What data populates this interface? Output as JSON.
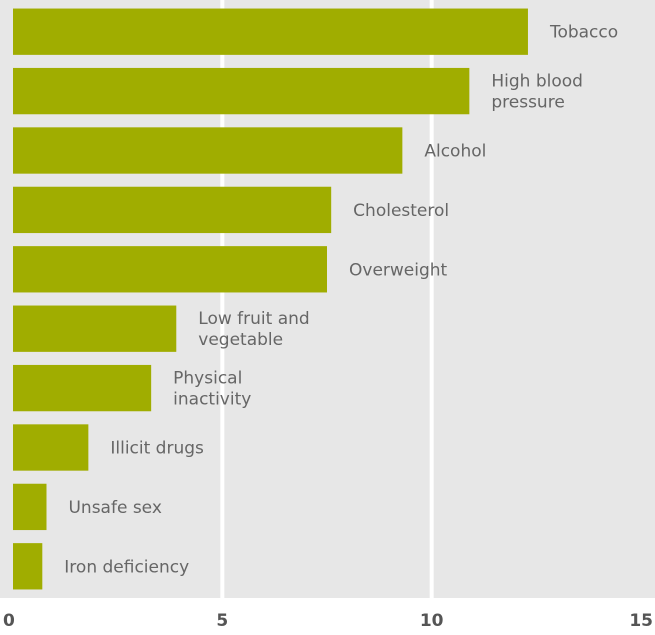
{
  "chart_data": {
    "type": "bar",
    "orientation": "horizontal",
    "categories": [
      "Tobacco",
      "High blood pressure",
      "Alcohol",
      "Cholesterol",
      "Overweight",
      "Low fruit and vegetable",
      "Physical inactivity",
      "Illicit drugs",
      "Unsafe sex",
      "Iron deficiency"
    ],
    "label_lines": [
      [
        "Tobacco"
      ],
      [
        "High blood",
        "pressure"
      ],
      [
        "Alcohol"
      ],
      [
        "Cholesterol"
      ],
      [
        "Overweight"
      ],
      [
        "Low fruit and",
        "vegetable"
      ],
      [
        "Physical",
        "inactivity"
      ],
      [
        "Illicit drugs"
      ],
      [
        "Unsafe sex"
      ],
      [
        "Iron deficiency"
      ]
    ],
    "values": [
      12.3,
      10.9,
      9.3,
      7.6,
      7.5,
      3.9,
      3.3,
      1.8,
      0.8,
      0.7
    ],
    "xlim": [
      0,
      15
    ],
    "xticks": [
      "0",
      "5",
      "10",
      "15"
    ],
    "title": "",
    "xlabel": "",
    "ylabel": "",
    "grid": true,
    "colors": {
      "bar": "#a0ad00",
      "plot_background": "#e7e7e7",
      "gridline": "#ffffff",
      "label_text": "#666666",
      "tick_text": "#555555"
    }
  }
}
